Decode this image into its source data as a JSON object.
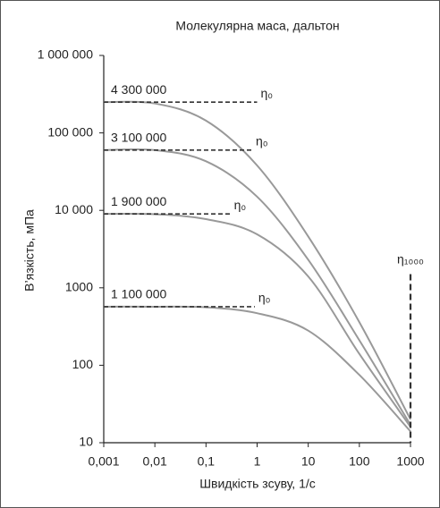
{
  "chart_data": {
    "type": "line",
    "title": "Молекулярна маса, дальтон",
    "x_label": "Швидкість зсуву, 1/с",
    "y_label": "В’язкість, мПа",
    "x_log": true,
    "y_log": true,
    "x": [
      0.001,
      0.01,
      0.1,
      1,
      10,
      100,
      1000
    ],
    "series": [
      {
        "name": "4 300 000",
        "color": "#999999",
        "values": [
          250000,
          240000,
          144000,
          38000,
          4600,
          360,
          20
        ],
        "plateau_end": 1,
        "plateau_label": "η₀"
      },
      {
        "name": "3 100 000",
        "color": "#999999",
        "values": [
          60000,
          60000,
          43000,
          15000,
          2300,
          210,
          17
        ],
        "plateau_end": 0.8,
        "plateau_label": "η₀"
      },
      {
        "name": "1 900 000",
        "color": "#999999",
        "values": [
          9000,
          8900,
          7700,
          4900,
          1400,
          140,
          16
        ],
        "plateau_end": 0.3,
        "plateau_label": "η₀"
      },
      {
        "name": "1 100 000",
        "color": "#999999",
        "values": [
          570,
          570,
          560,
          470,
          280,
          75,
          14
        ],
        "plateau_end": 0.9,
        "plateau_label": "η₀"
      }
    ],
    "annotation": {
      "label": "η₁₀₀₀",
      "x": 1000,
      "top": 1500
    },
    "xlim": [
      0.001,
      1000
    ],
    "xticks": [
      {
        "value": 0.001,
        "label": "0,001"
      },
      {
        "value": 0.01,
        "label": "0,01"
      },
      {
        "value": 0.1,
        "label": "0,1"
      },
      1,
      10,
      100,
      1000
    ],
    "ylim": [
      10,
      1000000
    ],
    "yticks": [
      10,
      100,
      1000,
      {
        "value": 10000,
        "label": "10 000"
      },
      {
        "value": 100000,
        "label": "100 000"
      },
      {
        "value": 1000000,
        "label": "1 000 000"
      }
    ],
    "grid": false
  }
}
